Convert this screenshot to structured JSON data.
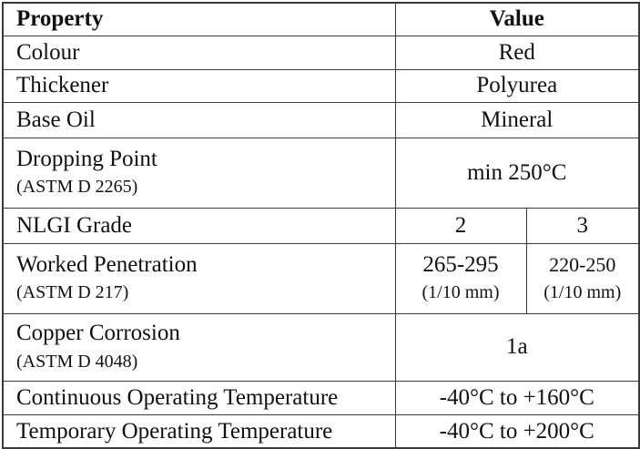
{
  "table": {
    "header": [
      "Property",
      "Value"
    ],
    "rows": [
      {
        "label": "Colour",
        "values": [
          {
            "text": "Red"
          }
        ]
      },
      {
        "label": "Thickener",
        "values": [
          {
            "text": "Polyurea"
          }
        ]
      },
      {
        "label": "Base Oil",
        "values": [
          {
            "text": "Mineral"
          }
        ]
      },
      {
        "label": "Dropping Point",
        "note": "(ASTM D 2265)",
        "values": [
          {
            "text": "min 250°C"
          }
        ]
      },
      {
        "label": "NLGI Grade",
        "values": [
          {
            "text": "2"
          },
          {
            "text": "3"
          }
        ]
      },
      {
        "label": "Worked Penetration",
        "note": "(ASTM D 217)",
        "values": [
          {
            "text": "265-295",
            "note": "(1/10 mm)"
          },
          {
            "text": "220-250",
            "note": "(1/10 mm)"
          }
        ]
      },
      {
        "label": "Copper Corrosion",
        "note": "(ASTM D 4048)",
        "values": [
          {
            "text": "1a"
          }
        ]
      },
      {
        "label": "Continuous Operating Temperature",
        "values": [
          {
            "text": "-40°C to +160°C"
          }
        ]
      },
      {
        "label": "Temporary Operating Temperature",
        "values": [
          {
            "text": "-40°C to +200°C"
          }
        ]
      }
    ]
  }
}
